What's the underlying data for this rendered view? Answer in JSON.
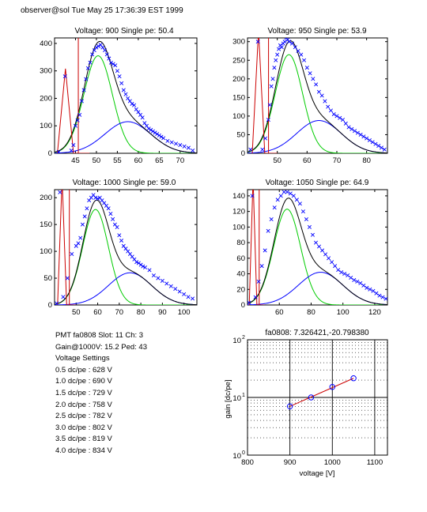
{
  "header": {
    "text": "observer@sol  Tue May 25 17:36:39 EST 1999"
  },
  "info": {
    "pmt_line": "PMT fa0808 Slot: 11 Ch: 3",
    "gain_line": "Gain@1000V: 15.2 Ped: 43",
    "settings_title": "Voltage Settings",
    "settings": [
      "0.5 dc/pe : 628 V",
      "1.0 dc/pe : 690 V",
      "1.5 dc/pe : 729 V",
      "2.0 dc/pe : 758 V",
      "2.5 dc/pe : 782 V",
      "3.0 dc/pe : 802 V",
      "3.5 dc/pe : 819 V",
      "4.0 dc/pe : 834 V"
    ]
  },
  "colors": {
    "data": "#0000ff",
    "fit_total": "#000000",
    "fit_green": "#00cc00",
    "fit_blue": "#0000ff",
    "pedestal": "#cc0000"
  },
  "chart_data": [
    {
      "type": "scatter",
      "title": "Voltage: 900 Single pe: 50.4",
      "xlim": [
        40,
        74
      ],
      "ylim": [
        0,
        420
      ],
      "xticks": [
        45,
        50,
        55,
        60,
        65,
        70
      ],
      "yticks": [
        0,
        100,
        200,
        300,
        400
      ],
      "pedestal": {
        "center": 42.6,
        "width": 0.32,
        "height": 280
      },
      "signal": {
        "mu": 50.4,
        "sigma": 3.4,
        "amp": 355
      },
      "background": {
        "mu": 57.5,
        "sigma": 5.5,
        "amp": 115
      },
      "points": [
        [
          41,
          5
        ],
        [
          42.5,
          280
        ],
        [
          44,
          10
        ],
        [
          44.5,
          30
        ],
        [
          45,
          100
        ],
        [
          45.5,
          120
        ],
        [
          46,
          140
        ],
        [
          46.5,
          190
        ],
        [
          47,
          230
        ],
        [
          47.5,
          270
        ],
        [
          48,
          310
        ],
        [
          48.5,
          330
        ],
        [
          49,
          360
        ],
        [
          49.5,
          375
        ],
        [
          50,
          385
        ],
        [
          50.5,
          390
        ],
        [
          51,
          395
        ],
        [
          51.5,
          385
        ],
        [
          52,
          375
        ],
        [
          52.5,
          360
        ],
        [
          53,
          345
        ],
        [
          53.5,
          330
        ],
        [
          54,
          325
        ],
        [
          54.5,
          320
        ],
        [
          55,
          300
        ],
        [
          55.5,
          280
        ],
        [
          56,
          255
        ],
        [
          56.5,
          230
        ],
        [
          57,
          215
        ],
        [
          57.5,
          200
        ],
        [
          58,
          190
        ],
        [
          58.5,
          180
        ],
        [
          59,
          175
        ],
        [
          59.5,
          160
        ],
        [
          60,
          150
        ],
        [
          60.5,
          140
        ],
        [
          61,
          130
        ],
        [
          61.5,
          110
        ],
        [
          62,
          100
        ],
        [
          62.5,
          90
        ],
        [
          63,
          85
        ],
        [
          63.5,
          80
        ],
        [
          64,
          75
        ],
        [
          64.5,
          70
        ],
        [
          65,
          65
        ],
        [
          65.5,
          60
        ],
        [
          66,
          55
        ],
        [
          67,
          45
        ],
        [
          68,
          40
        ],
        [
          69,
          35
        ],
        [
          70,
          30
        ],
        [
          71,
          25
        ],
        [
          72,
          20
        ],
        [
          73,
          10
        ]
      ]
    },
    {
      "type": "scatter",
      "title": "Voltage: 950 Single pe: 53.9",
      "xlim": [
        40,
        87
      ],
      "ylim": [
        0,
        310
      ],
      "xticks": [
        50,
        60,
        70,
        80
      ],
      "yticks": [
        0,
        50,
        100,
        150,
        200,
        250,
        300
      ],
      "pedestal": {
        "center": 43.7,
        "width": 0.35,
        "height": 300
      },
      "signal": {
        "mu": 53.9,
        "sigma": 4.6,
        "amp": 265
      },
      "background": {
        "mu": 64,
        "sigma": 7.5,
        "amp": 88
      },
      "points": [
        [
          41,
          10
        ],
        [
          43.5,
          300
        ],
        [
          45,
          10
        ],
        [
          46,
          40
        ],
        [
          47,
          90
        ],
        [
          47.5,
          130
        ],
        [
          48,
          180
        ],
        [
          48.5,
          200
        ],
        [
          49,
          230
        ],
        [
          49.5,
          250
        ],
        [
          50,
          265
        ],
        [
          50.5,
          280
        ],
        [
          51,
          290
        ],
        [
          51.5,
          285
        ],
        [
          52,
          295
        ],
        [
          52.5,
          300
        ],
        [
          53,
          310
        ],
        [
          53.5,
          305
        ],
        [
          54,
          300
        ],
        [
          55,
          295
        ],
        [
          56,
          285
        ],
        [
          57,
          275
        ],
        [
          58,
          265
        ],
        [
          59,
          250
        ],
        [
          60,
          230
        ],
        [
          61,
          215
        ],
        [
          62,
          200
        ],
        [
          63,
          185
        ],
        [
          64,
          165
        ],
        [
          65,
          155
        ],
        [
          66,
          140
        ],
        [
          67,
          125
        ],
        [
          68,
          115
        ],
        [
          69,
          105
        ],
        [
          70,
          100
        ],
        [
          71,
          95
        ],
        [
          72,
          90
        ],
        [
          73,
          80
        ],
        [
          74,
          70
        ],
        [
          75,
          65
        ],
        [
          76,
          60
        ],
        [
          77,
          55
        ],
        [
          78,
          50
        ],
        [
          79,
          45
        ],
        [
          80,
          40
        ],
        [
          81,
          35
        ],
        [
          82,
          30
        ],
        [
          83,
          25
        ],
        [
          84,
          20
        ],
        [
          85,
          15
        ],
        [
          86,
          10
        ]
      ]
    },
    {
      "type": "scatter",
      "title": "Voltage: 1000 Single pe: 59.0",
      "xlim": [
        40,
        106
      ],
      "ylim": [
        0,
        215
      ],
      "xticks": [
        50,
        60,
        70,
        80,
        90,
        100
      ],
      "yticks": [
        0,
        50,
        100,
        150,
        200
      ],
      "pedestal": {
        "center": 43.5,
        "width": 0.35,
        "height": 215
      },
      "signal": {
        "mu": 59.0,
        "sigma": 6.0,
        "amp": 178
      },
      "background": {
        "mu": 75,
        "sigma": 10,
        "amp": 60
      },
      "points": [
        [
          41,
          3
        ],
        [
          42.5,
          210
        ],
        [
          44,
          15
        ],
        [
          46,
          50
        ],
        [
          48,
          95
        ],
        [
          50,
          110
        ],
        [
          51,
          115
        ],
        [
          52,
          125
        ],
        [
          53,
          150
        ],
        [
          54,
          165
        ],
        [
          55,
          180
        ],
        [
          56,
          195
        ],
        [
          57,
          200
        ],
        [
          58,
          205
        ],
        [
          59,
          200
        ],
        [
          60,
          198
        ],
        [
          61,
          200
        ],
        [
          62,
          195
        ],
        [
          63,
          190
        ],
        [
          64,
          185
        ],
        [
          65,
          180
        ],
        [
          66,
          170
        ],
        [
          67,
          160
        ],
        [
          68,
          150
        ],
        [
          69,
          145
        ],
        [
          70,
          130
        ],
        [
          71,
          120
        ],
        [
          72,
          110
        ],
        [
          73,
          105
        ],
        [
          74,
          100
        ],
        [
          75,
          95
        ],
        [
          76,
          90
        ],
        [
          77,
          85
        ],
        [
          78,
          80
        ],
        [
          79,
          78
        ],
        [
          80,
          75
        ],
        [
          81,
          72
        ],
        [
          82,
          70
        ],
        [
          84,
          65
        ],
        [
          86,
          55
        ],
        [
          88,
          50
        ],
        [
          90,
          45
        ],
        [
          92,
          40
        ],
        [
          94,
          35
        ],
        [
          96,
          30
        ],
        [
          98,
          25
        ],
        [
          100,
          20
        ],
        [
          102,
          15
        ],
        [
          104,
          12
        ]
      ]
    },
    {
      "type": "scatter",
      "title": "Voltage: 1050 Single pe: 64.9",
      "xlim": [
        40,
        128
      ],
      "ylim": [
        0,
        148
      ],
      "xticks": [
        60,
        80,
        100,
        120
      ],
      "yticks": [
        0,
        20,
        40,
        60,
        80,
        100,
        120,
        140
      ],
      "pedestal": {
        "center": 43.5,
        "width": 0.4,
        "height": 148
      },
      "signal": {
        "mu": 64.9,
        "sigma": 8.5,
        "amp": 123
      },
      "background": {
        "mu": 86,
        "sigma": 14,
        "amp": 42
      },
      "points": [
        [
          41,
          3
        ],
        [
          43,
          140
        ],
        [
          45,
          10
        ],
        [
          47,
          30
        ],
        [
          49,
          50
        ],
        [
          51,
          70
        ],
        [
          53,
          95
        ],
        [
          55,
          110
        ],
        [
          57,
          125
        ],
        [
          59,
          135
        ],
        [
          61,
          140
        ],
        [
          63,
          145
        ],
        [
          65,
          145
        ],
        [
          67,
          143
        ],
        [
          69,
          140
        ],
        [
          71,
          135
        ],
        [
          73,
          130
        ],
        [
          75,
          120
        ],
        [
          77,
          110
        ],
        [
          79,
          100
        ],
        [
          81,
          90
        ],
        [
          83,
          80
        ],
        [
          85,
          75
        ],
        [
          87,
          70
        ],
        [
          89,
          65
        ],
        [
          91,
          60
        ],
        [
          93,
          55
        ],
        [
          95,
          50
        ],
        [
          97,
          45
        ],
        [
          99,
          42
        ],
        [
          101,
          40
        ],
        [
          103,
          38
        ],
        [
          105,
          35
        ],
        [
          107,
          32
        ],
        [
          109,
          30
        ],
        [
          111,
          28
        ],
        [
          113,
          25
        ],
        [
          115,
          22
        ],
        [
          117,
          20
        ],
        [
          119,
          18
        ],
        [
          121,
          15
        ],
        [
          123,
          12
        ],
        [
          125,
          10
        ],
        [
          127,
          8
        ]
      ]
    },
    {
      "type": "scatter",
      "title": "fa0808: 7.326421,-20.798380",
      "xlabel": "voltage [V]",
      "ylabel": "gain [dc/pe]",
      "xlim": [
        800,
        1130
      ],
      "ylim_log": [
        1,
        100
      ],
      "xticks": [
        800,
        900,
        1000,
        1100
      ],
      "yticks_labels": [
        "10^0",
        "10^1",
        "10^2"
      ],
      "scale_y": "log",
      "grid": true,
      "points": [
        [
          900,
          7.0
        ],
        [
          950,
          10.0
        ],
        [
          1000,
          15.2
        ],
        [
          1050,
          21.5
        ]
      ],
      "fit_line": [
        [
          900,
          7.0
        ],
        [
          1050,
          21.5
        ]
      ]
    }
  ]
}
